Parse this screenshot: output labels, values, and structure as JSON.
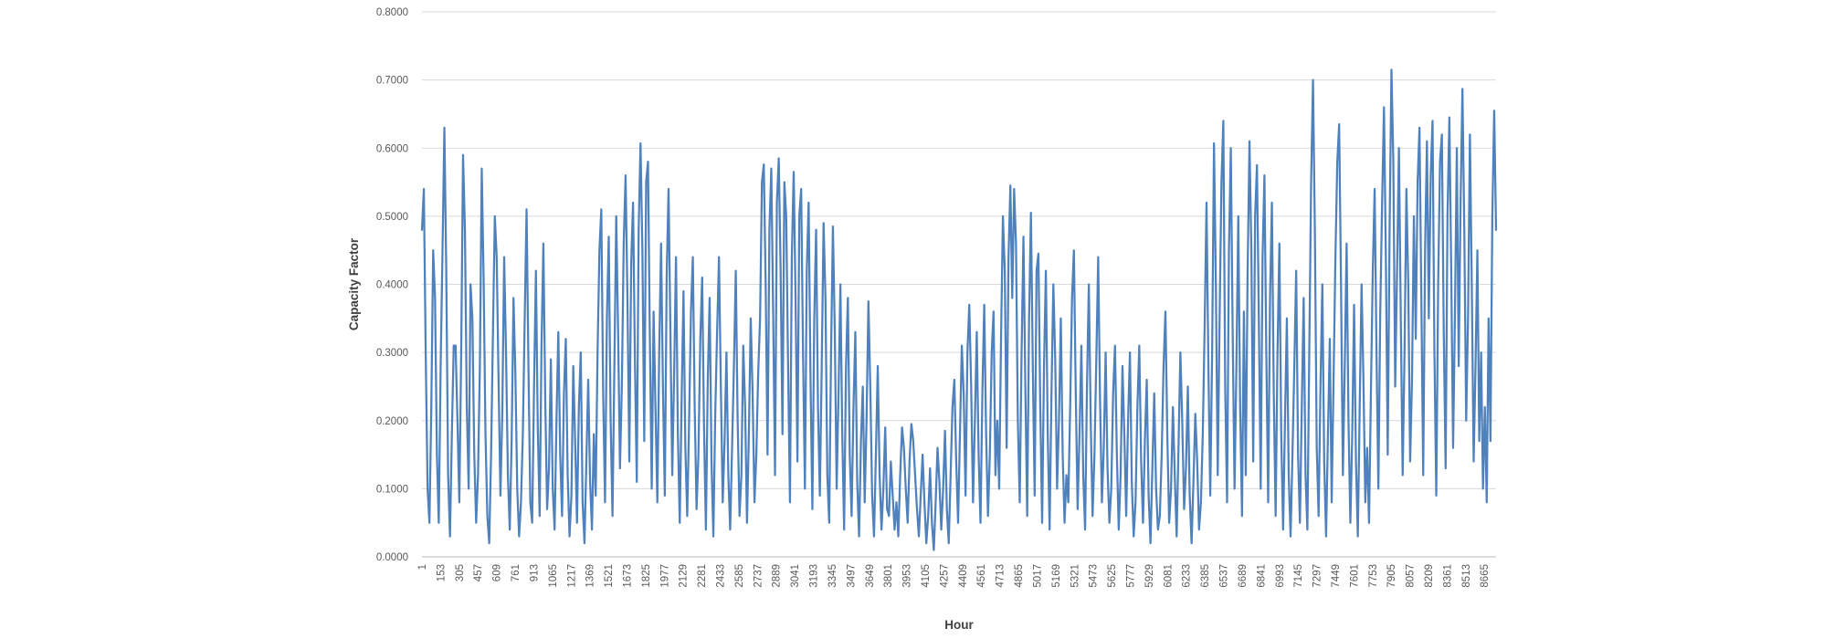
{
  "chart_data": {
    "type": "line",
    "title": "",
    "xlabel": "Hour",
    "ylabel": "Capacity Factor",
    "x_range": [
      1,
      8760
    ],
    "ylim": [
      0,
      0.8
    ],
    "grid": "horizontal",
    "legend": "none",
    "y_tick_labels": [
      "0.0000",
      "0.1000",
      "0.2000",
      "0.3000",
      "0.4000",
      "0.5000",
      "0.6000",
      "0.7000",
      "0.8000"
    ],
    "x_tick_labels": [
      "1",
      "153",
      "305",
      "457",
      "609",
      "761",
      "913",
      "1065",
      "1217",
      "1369",
      "1521",
      "1673",
      "1825",
      "1977",
      "2129",
      "2281",
      "2433",
      "2585",
      "2737",
      "2889",
      "3041",
      "3193",
      "3345",
      "3497",
      "3649",
      "3801",
      "3953",
      "4105",
      "4257",
      "4409",
      "4561",
      "4713",
      "4865",
      "5017",
      "5169",
      "5321",
      "5473",
      "5625",
      "5777",
      "5929",
      "6081",
      "6233",
      "6385",
      "6537",
      "6689",
      "6841",
      "6993",
      "7145",
      "7297",
      "7449",
      "7601",
      "7753",
      "7905",
      "8057",
      "8209",
      "8361",
      "8513",
      "8665"
    ],
    "series": [
      {
        "name": "Capacity Factor",
        "color": "#4f81bd",
        "sampling": "evenly spaced over x_range, approximate values read from plot",
        "values": [
          0.48,
          0.54,
          0.3,
          0.1,
          0.05,
          0.22,
          0.45,
          0.38,
          0.15,
          0.05,
          0.28,
          0.45,
          0.63,
          0.42,
          0.12,
          0.03,
          0.18,
          0.31,
          0.31,
          0.2,
          0.08,
          0.3,
          0.59,
          0.48,
          0.22,
          0.1,
          0.4,
          0.35,
          0.15,
          0.05,
          0.12,
          0.28,
          0.57,
          0.41,
          0.18,
          0.06,
          0.02,
          0.15,
          0.33,
          0.5,
          0.44,
          0.26,
          0.09,
          0.21,
          0.44,
          0.3,
          0.12,
          0.04,
          0.17,
          0.38,
          0.27,
          0.1,
          0.03,
          0.08,
          0.18,
          0.35,
          0.51,
          0.28,
          0.08,
          0.05,
          0.25,
          0.42,
          0.19,
          0.06,
          0.31,
          0.46,
          0.23,
          0.07,
          0.13,
          0.29,
          0.1,
          0.04,
          0.2,
          0.33,
          0.15,
          0.06,
          0.24,
          0.32,
          0.12,
          0.03,
          0.09,
          0.28,
          0.17,
          0.05,
          0.22,
          0.3,
          0.08,
          0.02,
          0.14,
          0.26,
          0.11,
          0.04,
          0.18,
          0.09,
          0.3,
          0.45,
          0.51,
          0.24,
          0.08,
          0.35,
          0.47,
          0.2,
          0.06,
          0.28,
          0.5,
          0.33,
          0.13,
          0.25,
          0.46,
          0.56,
          0.38,
          0.14,
          0.43,
          0.52,
          0.29,
          0.11,
          0.48,
          0.607,
          0.45,
          0.17,
          0.55,
          0.58,
          0.32,
          0.1,
          0.36,
          0.22,
          0.08,
          0.3,
          0.46,
          0.25,
          0.09,
          0.41,
          0.54,
          0.33,
          0.12,
          0.27,
          0.44,
          0.18,
          0.05,
          0.23,
          0.39,
          0.16,
          0.06,
          0.2,
          0.36,
          0.44,
          0.22,
          0.07,
          0.15,
          0.32,
          0.41,
          0.19,
          0.04,
          0.26,
          0.38,
          0.14,
          0.03,
          0.21,
          0.33,
          0.44,
          0.25,
          0.08,
          0.17,
          0.3,
          0.12,
          0.04,
          0.16,
          0.28,
          0.42,
          0.2,
          0.06,
          0.12,
          0.31,
          0.22,
          0.05,
          0.18,
          0.35,
          0.24,
          0.08,
          0.15,
          0.27,
          0.35,
          0.55,
          0.576,
          0.4,
          0.15,
          0.48,
          0.57,
          0.36,
          0.12,
          0.52,
          0.585,
          0.42,
          0.18,
          0.55,
          0.5,
          0.28,
          0.08,
          0.44,
          0.565,
          0.38,
          0.14,
          0.5,
          0.54,
          0.3,
          0.1,
          0.42,
          0.52,
          0.26,
          0.07,
          0.35,
          0.48,
          0.22,
          0.09,
          0.28,
          0.49,
          0.38,
          0.12,
          0.05,
          0.3,
          0.485,
          0.33,
          0.1,
          0.24,
          0.4,
          0.18,
          0.04,
          0.28,
          0.38,
          0.15,
          0.06,
          0.22,
          0.33,
          0.11,
          0.03,
          0.17,
          0.25,
          0.08,
          0.2,
          0.375,
          0.25,
          0.09,
          0.03,
          0.15,
          0.28,
          0.12,
          0.04,
          0.1,
          0.19,
          0.07,
          0.06,
          0.14,
          0.09,
          0.04,
          0.08,
          0.03,
          0.12,
          0.19,
          0.16,
          0.1,
          0.05,
          0.14,
          0.195,
          0.17,
          0.12,
          0.07,
          0.03,
          0.09,
          0.15,
          0.08,
          0.02,
          0.06,
          0.13,
          0.05,
          0.01,
          0.08,
          0.16,
          0.11,
          0.04,
          0.1,
          0.185,
          0.07,
          0.02,
          0.12,
          0.22,
          0.26,
          0.14,
          0.05,
          0.18,
          0.31,
          0.24,
          0.09,
          0.3,
          0.37,
          0.25,
          0.08,
          0.2,
          0.33,
          0.15,
          0.05,
          0.24,
          0.37,
          0.18,
          0.06,
          0.15,
          0.3,
          0.36,
          0.12,
          0.2,
          0.1,
          0.32,
          0.5,
          0.42,
          0.16,
          0.44,
          0.545,
          0.38,
          0.54,
          0.46,
          0.2,
          0.08,
          0.3,
          0.47,
          0.25,
          0.06,
          0.35,
          0.505,
          0.28,
          0.09,
          0.42,
          0.445,
          0.22,
          0.05,
          0.28,
          0.42,
          0.18,
          0.04,
          0.24,
          0.4,
          0.29,
          0.1,
          0.2,
          0.35,
          0.15,
          0.05,
          0.12,
          0.08,
          0.22,
          0.38,
          0.45,
          0.24,
          0.07,
          0.18,
          0.31,
          0.12,
          0.04,
          0.25,
          0.4,
          0.2,
          0.06,
          0.15,
          0.29,
          0.44,
          0.23,
          0.08,
          0.16,
          0.3,
          0.13,
          0.05,
          0.1,
          0.24,
          0.31,
          0.15,
          0.04,
          0.12,
          0.28,
          0.18,
          0.06,
          0.2,
          0.3,
          0.11,
          0.03,
          0.08,
          0.22,
          0.31,
          0.14,
          0.05,
          0.17,
          0.26,
          0.09,
          0.02,
          0.13,
          0.24,
          0.1,
          0.04,
          0.06,
          0.15,
          0.28,
          0.36,
          0.18,
          0.05,
          0.1,
          0.22,
          0.12,
          0.03,
          0.16,
          0.3,
          0.2,
          0.07,
          0.13,
          0.25,
          0.09,
          0.02,
          0.11,
          0.21,
          0.14,
          0.04,
          0.08,
          0.18,
          0.34,
          0.52,
          0.28,
          0.09,
          0.3,
          0.607,
          0.4,
          0.12,
          0.35,
          0.55,
          0.64,
          0.25,
          0.08,
          0.45,
          0.6,
          0.33,
          0.1,
          0.28,
          0.5,
          0.22,
          0.06,
          0.36,
          0.12,
          0.42,
          0.61,
          0.45,
          0.14,
          0.5,
          0.575,
          0.35,
          0.1,
          0.44,
          0.56,
          0.3,
          0.08,
          0.38,
          0.52,
          0.24,
          0.06,
          0.3,
          0.46,
          0.18,
          0.04,
          0.2,
          0.35,
          0.12,
          0.03,
          0.15,
          0.28,
          0.42,
          0.15,
          0.05,
          0.22,
          0.38,
          0.12,
          0.04,
          0.3,
          0.55,
          0.7,
          0.48,
          0.16,
          0.06,
          0.25,
          0.4,
          0.14,
          0.03,
          0.18,
          0.32,
          0.08,
          0.26,
          0.44,
          0.58,
          0.635,
          0.4,
          0.12,
          0.28,
          0.46,
          0.2,
          0.05,
          0.18,
          0.37,
          0.14,
          0.03,
          0.22,
          0.4,
          0.26,
          0.08,
          0.16,
          0.05,
          0.24,
          0.42,
          0.54,
          0.3,
          0.1,
          0.36,
          0.52,
          0.66,
          0.44,
          0.15,
          0.48,
          0.715,
          0.58,
          0.25,
          0.42,
          0.6,
          0.35,
          0.12,
          0.3,
          0.54,
          0.4,
          0.14,
          0.26,
          0.5,
          0.32,
          0.55,
          0.63,
          0.38,
          0.12,
          0.45,
          0.61,
          0.35,
          0.56,
          0.64,
          0.3,
          0.09,
          0.4,
          0.58,
          0.62,
          0.33,
          0.13,
          0.5,
          0.645,
          0.42,
          0.16,
          0.36,
          0.6,
          0.28,
          0.52,
          0.687,
          0.48,
          0.2,
          0.35,
          0.62,
          0.4,
          0.14,
          0.28,
          0.45,
          0.17,
          0.3,
          0.1,
          0.22,
          0.08,
          0.35,
          0.17,
          0.5,
          0.655,
          0.48
        ]
      }
    ],
    "colors": {
      "series_blue": "#4f81bd",
      "gridline": "#d9d9d9",
      "axis_line": "#c6c6c6",
      "tick_text": "#595959",
      "title_text": "#404040"
    }
  }
}
